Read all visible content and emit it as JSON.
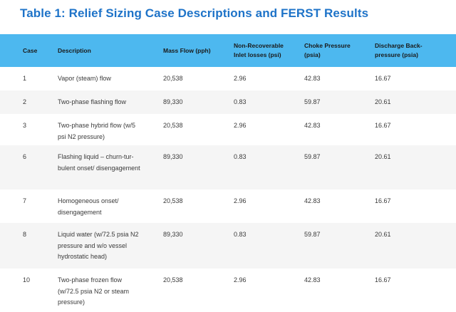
{
  "title": "Table 1: Relief Sizing Case Descriptions and FERST Results",
  "table": {
    "headers": {
      "case": "Case",
      "description": "Description",
      "mass_flow": "Mass Flow (pph)",
      "inlet_losses": "Non-Recoverable Inlet losses (psi)",
      "choke_pressure": "Choke Pressure (psia)",
      "discharge_back_pressure": "Discharge Back-pressure (psia)"
    },
    "rows": [
      {
        "case": "1",
        "description": "Vapor (steam) flow",
        "mass_flow": "20,538",
        "inlet_losses": "2.96",
        "choke_pressure": "42.83",
        "discharge_back_pressure": "16.67"
      },
      {
        "case": "2",
        "description": "Two-phase flashing flow",
        "mass_flow": "89,330",
        "inlet_losses": "0.83",
        "choke_pressure": "59.87",
        "discharge_back_pressure": "20.61"
      },
      {
        "case": "3",
        "description": "Two-phase hybrid flow (w/5 psi N2 pressure)",
        "mass_flow": "20,538",
        "inlet_losses": "2.96",
        "choke_pressure": "42.83",
        "discharge_back_pressure": "16.67"
      },
      {
        "case": "6",
        "description": "Flashing liquid – churn-tur-bulent onset/ disengagement",
        "mass_flow": "89,330",
        "inlet_losses": "0.83",
        "choke_pressure": "59.87",
        "discharge_back_pressure": "20.61"
      },
      {
        "case": "7",
        "description": "Homogeneous onset/ disengagement",
        "mass_flow": "20,538",
        "inlet_losses": "2.96",
        "choke_pressure": "42.83",
        "discharge_back_pressure": "16.67"
      },
      {
        "case": "8",
        "description": "Liquid water (w/72.5 psia N2 pressure and w/o vessel hydrostatic head)",
        "mass_flow": "89,330",
        "inlet_losses": "0.83",
        "choke_pressure": "59.87",
        "discharge_back_pressure": "20.61"
      },
      {
        "case": "10",
        "description": "Two-phase frozen flow (w/72.5 psia N2 or steam pressure)",
        "mass_flow": "20,538",
        "inlet_losses": "2.96",
        "choke_pressure": "42.83",
        "discharge_back_pressure": "16.67"
      }
    ]
  }
}
